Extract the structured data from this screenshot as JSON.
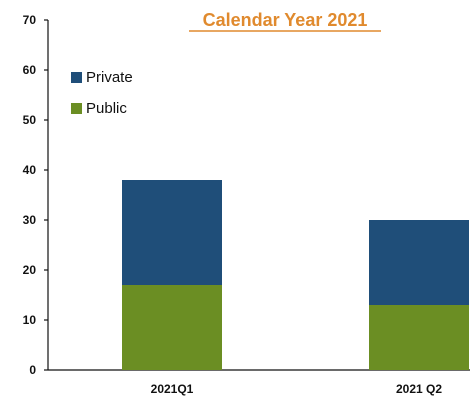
{
  "chart_data": {
    "type": "bar",
    "stacked": true,
    "title": "Calendar Year 2021",
    "categories": [
      "2021Q1",
      "2021 Q2"
    ],
    "series": [
      {
        "name": "Public",
        "values": [
          17,
          13
        ],
        "color": "#6b8e23"
      },
      {
        "name": "Private",
        "values": [
          21,
          17
        ],
        "color": "#1f4e79"
      }
    ],
    "ylim": [
      0,
      70
    ],
    "yticks": [
      "0",
      "10",
      "20",
      "30",
      "40",
      "50",
      "60",
      "70"
    ],
    "legend_position": "top-left",
    "grid": false,
    "xlabel": "",
    "ylabel": ""
  }
}
